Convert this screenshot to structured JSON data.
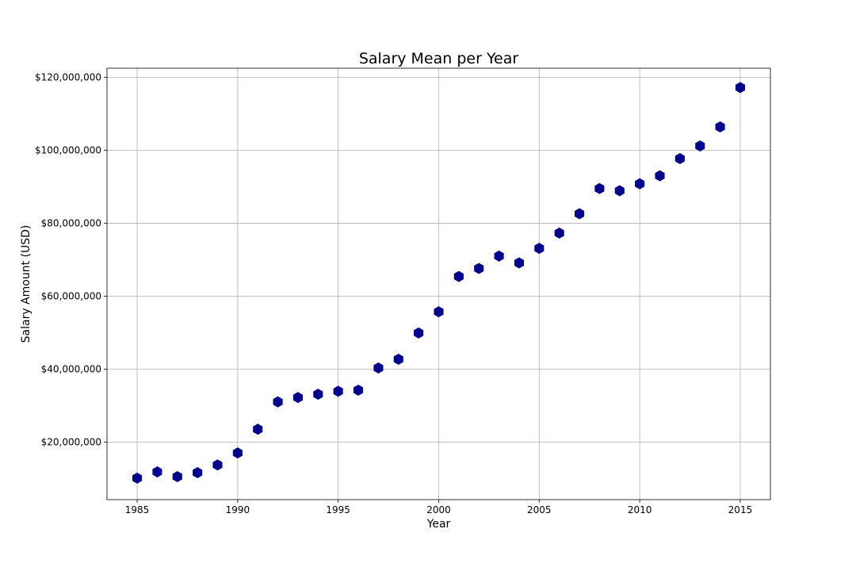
{
  "chart_data": {
    "type": "scatter",
    "title": "Salary Mean per Year",
    "xlabel": "Year",
    "ylabel": "Salary Amount (USD)",
    "xlim": [
      1983.5,
      2016.5
    ],
    "ylim": [
      4200000,
      122500000
    ],
    "x_ticks": [
      1985,
      1990,
      1995,
      2000,
      2005,
      2010,
      2015
    ],
    "x_tick_labels": [
      "1985",
      "1990",
      "1995",
      "2000",
      "2005",
      "2010",
      "2015"
    ],
    "y_ticks": [
      20000000,
      40000000,
      60000000,
      80000000,
      100000000,
      120000000
    ],
    "y_tick_labels": [
      "$20,000,000",
      "$40,000,000",
      "$60,000,000",
      "$80,000,000",
      "$100,000,000",
      "$120,000,000"
    ],
    "grid": true,
    "marker": "hexagon",
    "marker_color": "#00008b",
    "points": [
      {
        "x": 1985,
        "y": 10100000
      },
      {
        "x": 1986,
        "y": 11800000
      },
      {
        "x": 1987,
        "y": 10500000
      },
      {
        "x": 1988,
        "y": 11600000
      },
      {
        "x": 1989,
        "y": 13700000
      },
      {
        "x": 1990,
        "y": 17000000
      },
      {
        "x": 1991,
        "y": 23500000
      },
      {
        "x": 1992,
        "y": 31000000
      },
      {
        "x": 1993,
        "y": 32200000
      },
      {
        "x": 1994,
        "y": 33100000
      },
      {
        "x": 1995,
        "y": 33900000
      },
      {
        "x": 1996,
        "y": 34200000
      },
      {
        "x": 1997,
        "y": 40300000
      },
      {
        "x": 1998,
        "y": 42700000
      },
      {
        "x": 1999,
        "y": 49900000
      },
      {
        "x": 2000,
        "y": 55700000
      },
      {
        "x": 2001,
        "y": 65400000
      },
      {
        "x": 2002,
        "y": 67600000
      },
      {
        "x": 2003,
        "y": 71000000
      },
      {
        "x": 2004,
        "y": 69100000
      },
      {
        "x": 2005,
        "y": 73100000
      },
      {
        "x": 2006,
        "y": 77300000
      },
      {
        "x": 2007,
        "y": 82600000
      },
      {
        "x": 2008,
        "y": 89500000
      },
      {
        "x": 2009,
        "y": 88900000
      },
      {
        "x": 2010,
        "y": 90800000
      },
      {
        "x": 2011,
        "y": 93000000
      },
      {
        "x": 2012,
        "y": 97700000
      },
      {
        "x": 2013,
        "y": 101200000
      },
      {
        "x": 2014,
        "y": 106400000
      },
      {
        "x": 2015,
        "y": 117200000
      }
    ]
  }
}
